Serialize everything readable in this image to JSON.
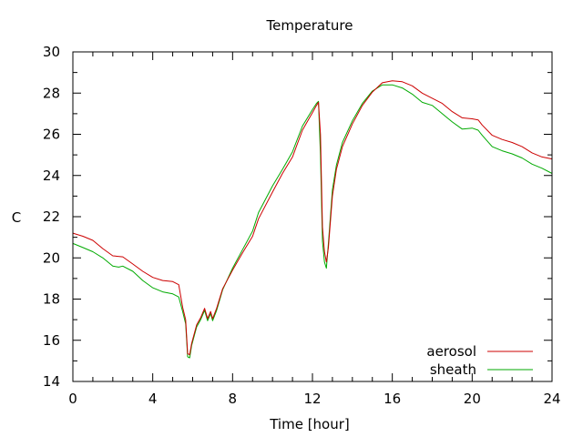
{
  "chart_data": {
    "type": "line",
    "title": "Temperature",
    "xlabel": "Time [hour]",
    "ylabel": "C",
    "xlim": [
      0,
      24
    ],
    "ylim": [
      14,
      30
    ],
    "x_ticks": [
      0,
      4,
      8,
      12,
      16,
      20,
      24
    ],
    "y_ticks": [
      14,
      16,
      18,
      20,
      22,
      24,
      26,
      28,
      30
    ],
    "grid": false,
    "legend_position": "bottom-right",
    "series": [
      {
        "name": "aerosol",
        "color": "#cc0000",
        "points": [
          [
            0,
            21.2
          ],
          [
            0.5,
            21.05
          ],
          [
            1,
            20.85
          ],
          [
            1.5,
            20.45
          ],
          [
            2,
            20.1
          ],
          [
            2.5,
            20.05
          ],
          [
            3,
            19.7
          ],
          [
            3.5,
            19.35
          ],
          [
            4,
            19.05
          ],
          [
            4.5,
            18.9
          ],
          [
            5,
            18.85
          ],
          [
            5.3,
            18.7
          ],
          [
            5.5,
            17.6
          ],
          [
            5.65,
            17.0
          ],
          [
            5.75,
            15.35
          ],
          [
            5.85,
            15.3
          ],
          [
            5.95,
            15.85
          ],
          [
            6.2,
            16.75
          ],
          [
            6.4,
            17.1
          ],
          [
            6.6,
            17.55
          ],
          [
            6.75,
            17.05
          ],
          [
            6.9,
            17.4
          ],
          [
            7.0,
            17.05
          ],
          [
            7.2,
            17.55
          ],
          [
            7.5,
            18.5
          ],
          [
            8,
            19.4
          ],
          [
            8.5,
            20.25
          ],
          [
            9,
            21.05
          ],
          [
            9.3,
            21.9
          ],
          [
            10,
            23.2
          ],
          [
            10.5,
            24.1
          ],
          [
            11,
            24.9
          ],
          [
            11.5,
            26.2
          ],
          [
            12,
            27.05
          ],
          [
            12.2,
            27.4
          ],
          [
            12.3,
            27.55
          ],
          [
            12.4,
            26.0
          ],
          [
            12.5,
            21.5
          ],
          [
            12.6,
            20.3
          ],
          [
            12.7,
            19.8
          ],
          [
            12.8,
            20.5
          ],
          [
            13.0,
            23.0
          ],
          [
            13.2,
            24.3
          ],
          [
            13.5,
            25.4
          ],
          [
            14,
            26.5
          ],
          [
            14.5,
            27.4
          ],
          [
            15,
            28.05
          ],
          [
            15.5,
            28.5
          ],
          [
            16,
            28.6
          ],
          [
            16.5,
            28.55
          ],
          [
            17,
            28.35
          ],
          [
            17.5,
            28.0
          ],
          [
            18,
            27.75
          ],
          [
            18.5,
            27.5
          ],
          [
            19,
            27.1
          ],
          [
            19.5,
            26.8
          ],
          [
            20,
            26.75
          ],
          [
            20.3,
            26.7
          ],
          [
            20.5,
            26.45
          ],
          [
            21,
            25.95
          ],
          [
            21.5,
            25.75
          ],
          [
            22,
            25.6
          ],
          [
            22.5,
            25.4
          ],
          [
            23,
            25.1
          ],
          [
            23.5,
            24.9
          ],
          [
            24,
            24.8
          ]
        ]
      },
      {
        "name": "sheath",
        "color": "#00aa00",
        "points": [
          [
            0,
            20.7
          ],
          [
            0.5,
            20.5
          ],
          [
            1,
            20.3
          ],
          [
            1.5,
            20.0
          ],
          [
            2,
            19.6
          ],
          [
            2.3,
            19.55
          ],
          [
            2.5,
            19.6
          ],
          [
            3,
            19.35
          ],
          [
            3.5,
            18.9
          ],
          [
            4,
            18.55
          ],
          [
            4.5,
            18.35
          ],
          [
            5,
            18.25
          ],
          [
            5.3,
            18.1
          ],
          [
            5.5,
            17.4
          ],
          [
            5.65,
            16.8
          ],
          [
            5.75,
            15.2
          ],
          [
            5.85,
            15.15
          ],
          [
            5.95,
            15.75
          ],
          [
            6.2,
            16.65
          ],
          [
            6.4,
            17.0
          ],
          [
            6.6,
            17.45
          ],
          [
            6.75,
            16.95
          ],
          [
            6.9,
            17.3
          ],
          [
            7.0,
            16.95
          ],
          [
            7.2,
            17.45
          ],
          [
            7.5,
            18.45
          ],
          [
            8,
            19.5
          ],
          [
            8.5,
            20.4
          ],
          [
            9,
            21.3
          ],
          [
            9.3,
            22.2
          ],
          [
            10,
            23.5
          ],
          [
            10.5,
            24.3
          ],
          [
            11,
            25.15
          ],
          [
            11.5,
            26.4
          ],
          [
            12,
            27.2
          ],
          [
            12.2,
            27.5
          ],
          [
            12.3,
            27.6
          ],
          [
            12.4,
            25.0
          ],
          [
            12.5,
            20.8
          ],
          [
            12.6,
            19.8
          ],
          [
            12.7,
            19.5
          ],
          [
            12.8,
            20.7
          ],
          [
            13.0,
            23.3
          ],
          [
            13.2,
            24.5
          ],
          [
            13.5,
            25.6
          ],
          [
            14,
            26.65
          ],
          [
            14.5,
            27.5
          ],
          [
            15,
            28.1
          ],
          [
            15.5,
            28.4
          ],
          [
            16,
            28.4
          ],
          [
            16.5,
            28.25
          ],
          [
            17,
            27.95
          ],
          [
            17.5,
            27.55
          ],
          [
            18,
            27.4
          ],
          [
            18.5,
            27.0
          ],
          [
            19,
            26.6
          ],
          [
            19.5,
            26.25
          ],
          [
            20,
            26.3
          ],
          [
            20.3,
            26.2
          ],
          [
            20.5,
            25.95
          ],
          [
            21,
            25.4
          ],
          [
            21.5,
            25.2
          ],
          [
            22,
            25.05
          ],
          [
            22.5,
            24.85
          ],
          [
            23,
            24.55
          ],
          [
            23.5,
            24.35
          ],
          [
            24,
            24.1
          ]
        ]
      }
    ]
  }
}
